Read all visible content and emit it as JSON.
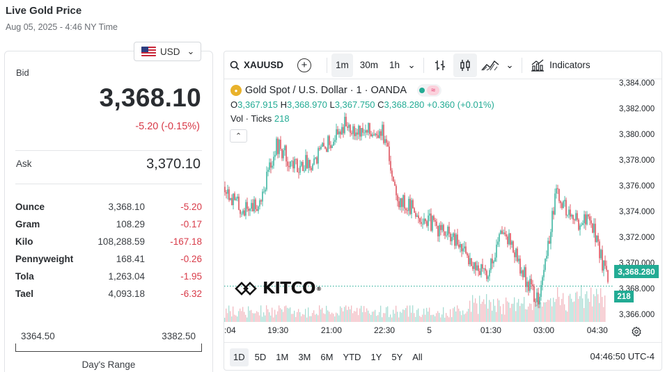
{
  "header": {
    "title": "Live Gold Price",
    "timestamp": "Aug 05, 2025 - 4:46 NY Time"
  },
  "currency": {
    "selected": "USD",
    "flag": "us-flag-icon"
  },
  "prices": {
    "bid_label": "Bid",
    "bid": "3,368.10",
    "change": "-5.20 (-0.15%)",
    "ask_label": "Ask",
    "ask": "3,370.10"
  },
  "units": [
    {
      "name": "Ounce",
      "price": "3,368.10",
      "change": "-5.20"
    },
    {
      "name": "Gram",
      "price": "108.29",
      "change": "-0.17"
    },
    {
      "name": "Kilo",
      "price": "108,288.59",
      "change": "-167.18"
    },
    {
      "name": "Pennyweight",
      "price": "168.41",
      "change": "-0.26"
    },
    {
      "name": "Tola",
      "price": "1,263.04",
      "change": "-1.95"
    },
    {
      "name": "Tael",
      "price": "4,093.18",
      "change": "-6.32"
    }
  ],
  "day_range": {
    "low": "3364.50",
    "high": "3382.50",
    "label": "Day's Range"
  },
  "chart": {
    "symbol": "XAUUSD",
    "intervals": [
      "1m",
      "30m",
      "1h"
    ],
    "active_interval": "1m",
    "indicators_label": "Indicators",
    "legend": {
      "title": "Gold Spot / U.S. Dollar · 1 · OANDA",
      "o_label": "O",
      "o": "3,367.915",
      "h_label": "H",
      "h": "3,368.970",
      "l_label": "L",
      "l": "3,367.750",
      "c_label": "C",
      "c": "3,368.280",
      "change": "+0.360 (+0.01%)",
      "vol_label": "Vol · Ticks",
      "vol": "218"
    },
    "watermark": "KITCO",
    "last_price_tag": "3,368.280",
    "volume_tag": "218",
    "time_ranges": [
      "1D",
      "5D",
      "1M",
      "3M",
      "6M",
      "YTD",
      "1Y",
      "5Y",
      "All"
    ],
    "active_range": "1D",
    "clock": "04:46:50 UTC-4",
    "colors": {
      "up": "#22ab94",
      "down": "#d83a48",
      "accent": "#22ab94"
    }
  },
  "chart_data": {
    "type": "line",
    "title": "Gold Spot / U.S. Dollar · 1 · OANDA",
    "xlabel": "",
    "ylabel": "",
    "x_ticks": [
      ":04",
      "19:30",
      "21:00",
      "22:30",
      "5",
      "01:30",
      "03:00",
      "04:30"
    ],
    "y_ticks": [
      "3,384.000",
      "3,382.000",
      "3,380.000",
      "3,378.000",
      "3,376.000",
      "3,374.000",
      "3,372.000",
      "3,370.000",
      "3,368.000",
      "3,366.000"
    ],
    "ylim": [
      3365.5,
      3384.3
    ],
    "x": [
      "18:04",
      "18:30",
      "19:00",
      "19:30",
      "20:00",
      "20:30",
      "21:00",
      "21:30",
      "22:00",
      "22:30",
      "23:00",
      "23:30",
      "00:00",
      "00:30",
      "01:00",
      "01:30",
      "02:00",
      "02:30",
      "03:00",
      "03:30",
      "04:00",
      "04:30",
      "04:46"
    ],
    "series": [
      {
        "name": "XAUUSD",
        "values": [
          3376.0,
          3374.2,
          3374.8,
          3379.3,
          3377.6,
          3378.0,
          3379.5,
          3381.0,
          3380.2,
          3380.5,
          3375.0,
          3374.0,
          3373.0,
          3372.0,
          3370.5,
          3369.0,
          3373.0,
          3369.5,
          3367.0,
          3375.5,
          3373.3,
          3373.5,
          3368.28
        ]
      }
    ]
  }
}
